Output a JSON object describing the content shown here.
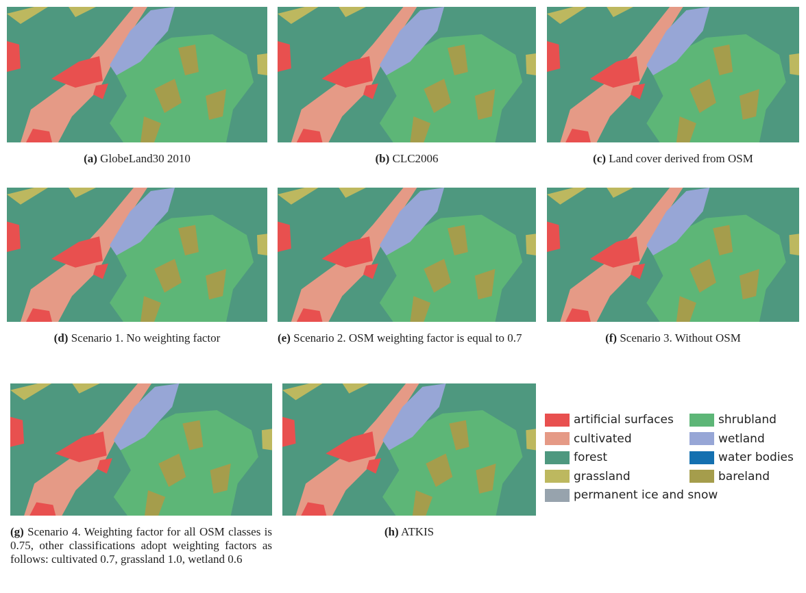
{
  "panels": [
    {
      "label": "(a)",
      "caption": "GlobeLand30 2010"
    },
    {
      "label": "(b)",
      "caption": "CLC2006"
    },
    {
      "label": "(c)",
      "caption": "Land cover derived from OSM"
    },
    {
      "label": "(d)",
      "caption": "Scenario 1. No weighting factor"
    },
    {
      "label": "(e)",
      "caption": "Scenario 2.  OSM weighting factor is equal to 0.7"
    },
    {
      "label": "(f)",
      "caption": "Scenario 3. Without OSM"
    },
    {
      "label": "(g)",
      "caption": "Scenario 4.  Weighting factor for all OSM classes is 0.75, other classifications adopt weighting factors as follows: cultivated 0.7, grassland 1.0, wetland 0.6"
    },
    {
      "label": "(h)",
      "caption": "ATKIS"
    }
  ],
  "legend": [
    {
      "label": "artificial surfaces",
      "color": "#e8504f"
    },
    {
      "label": "cultivated",
      "color": "#e59a86"
    },
    {
      "label": "forest",
      "color": "#4e987f"
    },
    {
      "label": "grassland",
      "color": "#bdb85f"
    },
    {
      "label": "permanent ice and snow",
      "color": "#97a3ad"
    },
    {
      "label": "shrubland",
      "color": "#5db677"
    },
    {
      "label": "wetland",
      "color": "#97a6d6"
    },
    {
      "label": "water bodies",
      "color": "#1470b0"
    },
    {
      "label": "bareland",
      "color": "#a59d4c"
    }
  ]
}
